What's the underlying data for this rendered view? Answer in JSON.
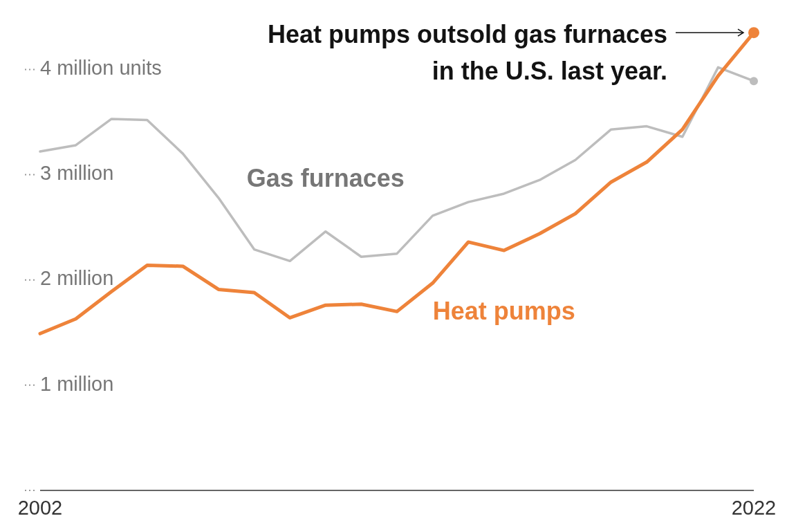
{
  "chart_data": {
    "type": "line",
    "x": [
      2002,
      2003,
      2004,
      2005,
      2006,
      2007,
      2008,
      2009,
      2010,
      2011,
      2012,
      2013,
      2014,
      2015,
      2016,
      2017,
      2018,
      2019,
      2020,
      2021,
      2022
    ],
    "series": [
      {
        "name": "Gas furnaces",
        "color": "#bdbdbd",
        "values": [
          3.22,
          3.28,
          3.53,
          3.52,
          3.2,
          2.78,
          2.29,
          2.18,
          2.46,
          2.22,
          2.25,
          2.61,
          2.74,
          2.82,
          2.95,
          3.14,
          3.43,
          3.46,
          3.36,
          4.02,
          3.89
        ]
      },
      {
        "name": "Heat pumps",
        "color": "#ee833a",
        "values": [
          1.49,
          1.63,
          1.89,
          2.14,
          2.13,
          1.91,
          1.88,
          1.64,
          1.76,
          1.77,
          1.7,
          1.97,
          2.36,
          2.28,
          2.44,
          2.63,
          2.93,
          3.12,
          3.43,
          3.94,
          4.35
        ]
      }
    ],
    "xlim": [
      2002,
      2022
    ],
    "xticks": [
      2002,
      2022
    ],
    "ylim": [
      0,
      4.66
    ],
    "yticks": [
      {
        "value": 0,
        "label": null
      },
      {
        "value": 1,
        "label": "1 million"
      },
      {
        "value": 2,
        "label": "2 million"
      },
      {
        "value": 3,
        "label": "3 million"
      },
      {
        "value": 4,
        "label": "4 million units"
      }
    ],
    "annotations": [
      "Heat pumps outsold gas furnaces in the U.S. last year."
    ],
    "legend": false
  }
}
